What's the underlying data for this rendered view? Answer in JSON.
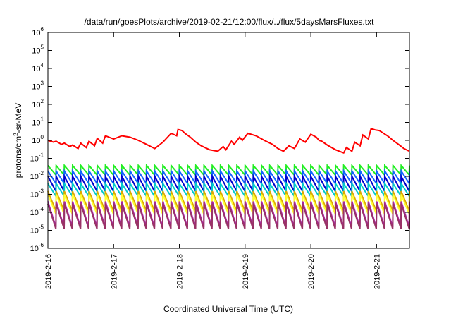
{
  "chart_data": {
    "type": "line",
    "title": "/data/run/goesPlots/archive/2019-02-21/12:00/flux/../flux/5daysMarsFluxes.txt",
    "xlabel": "Coordinated Universal Time (UTC)",
    "ylabel": {
      "main": "protons/cm",
      "sup": "2",
      "rest": "-sr-MeV"
    },
    "y_scale": "log",
    "ylim": [
      1e-06,
      1000000.0
    ],
    "y_ticks": [
      {
        "value": 1000000.0,
        "exp": "6"
      },
      {
        "value": 100000.0,
        "exp": "5"
      },
      {
        "value": 10000.0,
        "exp": "4"
      },
      {
        "value": 1000.0,
        "exp": "3"
      },
      {
        "value": 100.0,
        "exp": "2"
      },
      {
        "value": 10.0,
        "exp": "1"
      },
      {
        "value": 1.0,
        "exp": "0"
      },
      {
        "value": 0.1,
        "exp": "-1"
      },
      {
        "value": 0.01,
        "exp": "-2"
      },
      {
        "value": 0.001,
        "exp": "-3"
      },
      {
        "value": 0.0001,
        "exp": "-4"
      },
      {
        "value": 1e-05,
        "exp": "-5"
      },
      {
        "value": 1e-06,
        "exp": "-6"
      }
    ],
    "y_tick_base": "10",
    "xlim": [
      "2019-02-16T00:00",
      "2019-02-21T12:00"
    ],
    "x_ticks": [
      {
        "value": "2019-02-16T00:00",
        "label": "2019-2-16"
      },
      {
        "value": "2019-02-17T00:00",
        "label": "2019-2-17"
      },
      {
        "value": "2019-02-18T00:00",
        "label": "2019-2-18"
      },
      {
        "value": "2019-02-19T00:00",
        "label": "2019-2-19"
      },
      {
        "value": "2019-02-20T00:00",
        "label": "2019-2-20"
      },
      {
        "value": "2019-02-21T00:00",
        "label": "2019-2-21"
      }
    ],
    "grid": false,
    "legend": "none",
    "series": [
      {
        "color": "#ff0000",
        "x": [
          "2019-02-16T00:00",
          "2019-02-16T02:00",
          "2019-02-16T03:00",
          "2019-02-16T05:00",
          "2019-02-16T06:00",
          "2019-02-16T08:00",
          "2019-02-16T09:00",
          "2019-02-16T11:00",
          "2019-02-16T12:00",
          "2019-02-16T14:00",
          "2019-02-16T15:00",
          "2019-02-16T17:00",
          "2019-02-16T18:00",
          "2019-02-16T20:00",
          "2019-02-16T21:00",
          "2019-02-17T00:00",
          "2019-02-17T03:00",
          "2019-02-17T06:00",
          "2019-02-17T09:00",
          "2019-02-17T12:00",
          "2019-02-17T15:00",
          "2019-02-17T18:00",
          "2019-02-17T21:00",
          "2019-02-17T23:00",
          "2019-02-17T23:30",
          "2019-02-18T01:00",
          "2019-02-18T02:00",
          "2019-02-18T04:00",
          "2019-02-18T06:00",
          "2019-02-18T08:00",
          "2019-02-18T11:00",
          "2019-02-18T14:00",
          "2019-02-18T16:00",
          "2019-02-18T17:00",
          "2019-02-18T19:00",
          "2019-02-18T20:00",
          "2019-02-18T22:00",
          "2019-02-18T23:00",
          "2019-02-19T01:00",
          "2019-02-19T04:00",
          "2019-02-19T07:00",
          "2019-02-19T10:00",
          "2019-02-19T12:00",
          "2019-02-19T14:00",
          "2019-02-19T16:00",
          "2019-02-19T18:00",
          "2019-02-19T20:00",
          "2019-02-19T22:00",
          "2019-02-20T00:00",
          "2019-02-20T02:00",
          "2019-02-20T03:00",
          "2019-02-20T04:00",
          "2019-02-20T06:00",
          "2019-02-20T09:00",
          "2019-02-20T12:00",
          "2019-02-20T13:00",
          "2019-02-20T15:00",
          "2019-02-20T16:00",
          "2019-02-20T18:00",
          "2019-02-20T19:00",
          "2019-02-20T21:00",
          "2019-02-20T22:00",
          "2019-02-20T23:30",
          "2019-02-21T01:00",
          "2019-02-21T02:00",
          "2019-02-21T04:00",
          "2019-02-21T06:00",
          "2019-02-21T08:00",
          "2019-02-21T10:00",
          "2019-02-21T12:00"
        ],
        "y": [
          1.0,
          0.8,
          0.9,
          0.6,
          0.7,
          0.45,
          0.55,
          0.35,
          0.7,
          0.4,
          0.9,
          0.5,
          1.3,
          0.7,
          1.8,
          1.2,
          1.8,
          1.5,
          1.0,
          0.6,
          0.35,
          0.8,
          2.5,
          1.8,
          4.0,
          3.5,
          2.5,
          1.5,
          0.8,
          0.5,
          0.3,
          0.25,
          0.45,
          0.3,
          0.9,
          0.6,
          1.5,
          1.0,
          2.5,
          1.8,
          1.0,
          0.6,
          0.35,
          0.25,
          0.5,
          0.35,
          1.2,
          0.8,
          2.2,
          1.5,
          1.0,
          0.9,
          0.55,
          0.3,
          0.2,
          0.4,
          0.25,
          0.8,
          0.5,
          2.0,
          1.2,
          4.5,
          3.8,
          3.5,
          2.8,
          1.8,
          1.0,
          0.6,
          0.35,
          0.25
        ]
      }
    ],
    "periodic_series": [
      {
        "color": "#22ee22",
        "peak": 0.04,
        "trough": 0.012
      },
      {
        "color": "#1166ff",
        "peak": 0.02,
        "trough": 0.004
      },
      {
        "color": "#0000cc",
        "peak": 0.01,
        "trough": 0.0015
      },
      {
        "color": "#00cccc",
        "peak": 0.004,
        "trough": 0.0008
      },
      {
        "color": "#ddaa00",
        "peak": 0.0015,
        "trough": 0.00012
      },
      {
        "color": "#ffff33",
        "peak": 0.001,
        "trough": 8e-05
      },
      {
        "color": "#aa22aa",
        "peak": 0.0004,
        "trough": 1.5e-05
      },
      {
        "color": "#993366",
        "peak": 0.0003,
        "trough": 1.2e-05
      }
    ],
    "period_hours": 3
  }
}
